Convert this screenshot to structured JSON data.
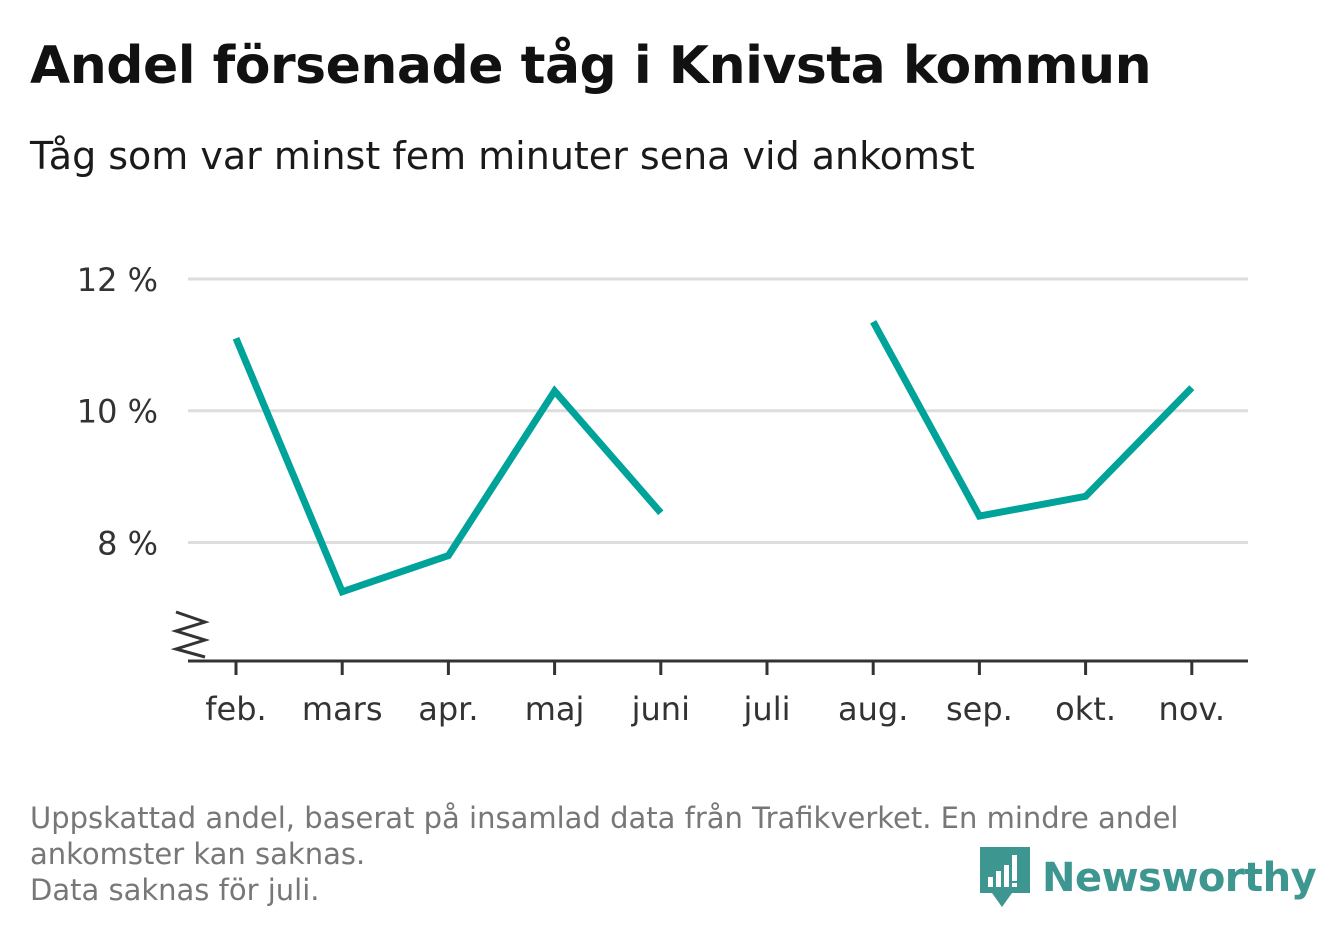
{
  "header": {
    "title": "Andel försenade tåg i Knivsta kommun",
    "subtitle": "Tåg som var minst fem minuter sena vid ankomst"
  },
  "chart_data": {
    "type": "line",
    "title": "Andel försenade tåg i Knivsta kommun",
    "subtitle": "Tåg som var minst fem minuter sena vid ankomst",
    "categories": [
      "feb.",
      "mars",
      "apr.",
      "maj",
      "juni",
      "juli",
      "aug.",
      "sep.",
      "okt.",
      "nov."
    ],
    "series": [
      {
        "values": [
          11.1,
          7.25,
          7.8,
          10.3,
          8.45,
          null,
          11.35,
          8.4,
          8.7,
          10.35
        ],
        "color": "#00a399"
      }
    ],
    "y_ticks": [
      {
        "value": 12,
        "label": "12 %"
      },
      {
        "value": 10,
        "label": "10 %"
      },
      {
        "value": 8,
        "label": "8 %"
      }
    ],
    "ylim": [
      6.2,
      12
    ],
    "y_axis_break": true,
    "grid": true,
    "xlabel": "",
    "ylabel": ""
  },
  "footer": {
    "note_line1": "Uppskattad andel, baserat på insamlad data från Trafikverket. En mindre andel",
    "note_line2": "ankomster kan saknas.",
    "note_line3": "Data saknas för juli."
  },
  "brand": {
    "name": "Newsworthy",
    "color": "#3d9690"
  }
}
